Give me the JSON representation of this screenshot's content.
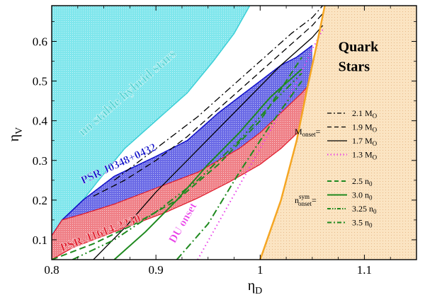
{
  "chart_data": {
    "type": "line",
    "xlabel": "η",
    "xlabel_sub": "D",
    "ylabel": "η",
    "ylabel_sub": "V",
    "xlim": [
      0.8,
      1.15
    ],
    "ylim": [
      0.05,
      0.69
    ],
    "x_ticks": [
      0.8,
      0.9,
      1.0,
      1.1
    ],
    "x_tick_labels": [
      "0.8",
      "0.9",
      "1",
      "1.1"
    ],
    "y_ticks": [
      0.1,
      0.2,
      0.3,
      0.4,
      0.5,
      0.6
    ],
    "y_tick_labels": [
      "0.1",
      "0.2",
      "0.3",
      "0.4",
      "0.5",
      "0.6"
    ],
    "grid": false,
    "legend_position": "right",
    "colors": {
      "no_stable": "#7fe6ec",
      "psr_j0348": "#6a6ae6",
      "psr_j1614": "#ef7f86",
      "quark": "#fbe4c2",
      "quark_border": "#f5a623",
      "du_line": "#e83ce8",
      "green": "#1f8a1f",
      "cyan_text": "#5ad4d4",
      "blue_text": "#1010c8",
      "red_text": "#e01a2a"
    },
    "regions": [
      {
        "name": "no stable hybrid stars",
        "boundary": [
          [
            0.8,
            0.11
          ],
          [
            0.81,
            0.15
          ],
          [
            0.83,
            0.2
          ],
          [
            0.845,
            0.25
          ],
          [
            0.87,
            0.33
          ],
          [
            0.9,
            0.4
          ],
          [
            0.93,
            0.47
          ],
          [
            0.955,
            0.55
          ],
          [
            0.975,
            0.62
          ],
          [
            0.99,
            0.69
          ]
        ]
      },
      {
        "name": "PSR J0348+0432",
        "upper": [
          [
            0.8,
            0.11
          ],
          [
            0.81,
            0.15
          ],
          [
            0.83,
            0.2
          ],
          [
            0.84,
            0.22
          ],
          [
            0.86,
            0.26
          ],
          [
            0.9,
            0.31
          ],
          [
            0.93,
            0.35
          ],
          [
            0.96,
            0.42
          ],
          [
            0.985,
            0.47
          ],
          [
            1.0,
            0.5
          ],
          [
            1.02,
            0.54
          ],
          [
            1.035,
            0.56
          ],
          [
            1.05,
            0.59
          ]
        ],
        "lower": [
          [
            0.81,
            0.15
          ],
          [
            0.83,
            0.165
          ],
          [
            0.86,
            0.19
          ],
          [
            0.9,
            0.23
          ],
          [
            0.94,
            0.27
          ],
          [
            0.98,
            0.33
          ],
          [
            1.0,
            0.37
          ],
          [
            1.02,
            0.42
          ],
          [
            1.04,
            0.47
          ],
          [
            1.05,
            0.5
          ]
        ]
      },
      {
        "name": "PSR-J1614-2230",
        "upper": [
          [
            0.8,
            0.11
          ],
          [
            0.81,
            0.15
          ],
          [
            0.83,
            0.165
          ],
          [
            0.86,
            0.19
          ],
          [
            0.9,
            0.23
          ],
          [
            0.94,
            0.27
          ],
          [
            0.98,
            0.33
          ],
          [
            1.0,
            0.37
          ],
          [
            1.02,
            0.42
          ],
          [
            1.04,
            0.47
          ],
          [
            1.05,
            0.5
          ]
        ],
        "lower": [
          [
            0.8,
            0.05
          ],
          [
            0.82,
            0.08
          ],
          [
            0.85,
            0.11
          ],
          [
            0.88,
            0.14
          ],
          [
            0.91,
            0.17
          ],
          [
            0.94,
            0.205
          ],
          [
            0.97,
            0.245
          ],
          [
            1.0,
            0.29
          ],
          [
            1.02,
            0.33
          ],
          [
            1.04,
            0.38
          ],
          [
            1.05,
            0.42
          ]
        ]
      },
      {
        "name": "Quark Stars",
        "boundary": [
          [
            1.0,
            0.05
          ],
          [
            1.02,
            0.2
          ],
          [
            1.035,
            0.35
          ],
          [
            1.045,
            0.48
          ],
          [
            1.055,
            0.6
          ],
          [
            1.062,
            0.69
          ]
        ]
      }
    ],
    "series": [
      {
        "name": "2.1 M_O",
        "style": "dash-dot",
        "color": "#000000",
        "x": [
          0.86,
          0.88,
          0.91,
          0.94,
          0.97,
          1.0,
          1.03,
          1.05,
          1.06
        ],
        "y": [
          0.25,
          0.29,
          0.35,
          0.41,
          0.48,
          0.55,
          0.62,
          0.66,
          0.69
        ]
      },
      {
        "name": "1.9 M_O",
        "style": "dash",
        "color": "#000000",
        "x": [
          0.84,
          0.87,
          0.9,
          0.93,
          0.96,
          0.99,
          1.02,
          1.05,
          1.06
        ],
        "y": [
          0.21,
          0.25,
          0.3,
          0.36,
          0.43,
          0.5,
          0.57,
          0.64,
          0.67
        ]
      },
      {
        "name": "1.7 M_O",
        "style": "solid",
        "color": "#000000",
        "x": [
          0.84,
          0.87,
          0.9,
          0.93,
          0.96,
          0.99,
          1.02,
          1.05,
          1.06
        ],
        "y": [
          0.05,
          0.13,
          0.22,
          0.3,
          0.38,
          0.46,
          0.54,
          0.61,
          0.64
        ]
      },
      {
        "name": "1.3 M_O",
        "style": "dot",
        "color": "#e83ce8",
        "x": [
          0.94,
          0.97,
          1.0,
          1.03,
          1.05,
          1.06
        ],
        "y": [
          0.05,
          0.19,
          0.33,
          0.47,
          0.58,
          0.63
        ]
      },
      {
        "name": "2.5 n_0",
        "style": "dash",
        "color": "#1f8a1f",
        "x": [
          0.8,
          0.84,
          0.88,
          0.92,
          0.96,
          1.0,
          1.02,
          1.04
        ],
        "y": [
          0.05,
          0.09,
          0.14,
          0.2,
          0.29,
          0.4,
          0.48,
          0.56
        ]
      },
      {
        "name": "3.0 n_0",
        "style": "solid",
        "color": "#1f8a1f",
        "x": [
          0.86,
          0.89,
          0.92,
          0.95,
          0.98,
          1.01,
          1.04
        ],
        "y": [
          0.05,
          0.12,
          0.2,
          0.29,
          0.37,
          0.46,
          0.53
        ]
      },
      {
        "name": "3.25 n_0",
        "style": "dash-dot-dot",
        "color": "#1f8a1f",
        "x": [
          0.82,
          0.86,
          0.9,
          0.94,
          0.98,
          1.01,
          1.04
        ],
        "y": [
          0.05,
          0.1,
          0.17,
          0.25,
          0.35,
          0.44,
          0.52
        ]
      },
      {
        "name": "3.5 n_0",
        "style": "dash-dot",
        "color": "#1f8a1f",
        "x": [
          0.92,
          0.95,
          0.98,
          1.01,
          1.04
        ],
        "y": [
          0.05,
          0.14,
          0.27,
          0.39,
          0.5
        ]
      }
    ],
    "annotations": [
      {
        "text": "no stable hybrid stars",
        "x": 0.83,
        "y": 0.36,
        "rotation": -41,
        "color": "#5ad4d4",
        "size": 19
      },
      {
        "text": "PSR J0348+0432",
        "x": 0.83,
        "y": 0.24,
        "rotation": -25,
        "color": "#1010c8",
        "size": 16
      },
      {
        "text": "PSR-J1614-2230",
        "x": 0.81,
        "y": 0.07,
        "rotation": -21,
        "color": "#e01a2a",
        "size": 17
      },
      {
        "text": "DU onset",
        "x": 0.918,
        "y": 0.09,
        "rotation": -60,
        "color": "#e83ce8",
        "size": 16
      },
      {
        "text": "Quark",
        "x": 1.075,
        "y": 0.575,
        "rotation": 0,
        "color": "#000000",
        "size": 20
      },
      {
        "text": "Stars",
        "x": 1.075,
        "y": 0.525,
        "rotation": 0,
        "color": "#000000",
        "size": 20
      }
    ],
    "legend": {
      "group1_label": "M",
      "group1_sub": "onset",
      "group1_suffix": "=",
      "group2_label": "n",
      "group2_sup": "sym",
      "group2_sub": "onset",
      "group2_suffix": "=",
      "entries": [
        {
          "prefix": "2.1 M",
          "sub": "O"
        },
        {
          "prefix": "1.9 M",
          "sub": "O"
        },
        {
          "prefix": "1.7 M",
          "sub": "O"
        },
        {
          "prefix": "1.3 M",
          "sub": "O"
        },
        {
          "prefix": "2.5 n",
          "sub": "0"
        },
        {
          "prefix": "3.0 n",
          "sub": "0"
        },
        {
          "prefix": "3.25 n",
          "sub": "0"
        },
        {
          "prefix": "3.5 n",
          "sub": "0"
        }
      ]
    }
  }
}
